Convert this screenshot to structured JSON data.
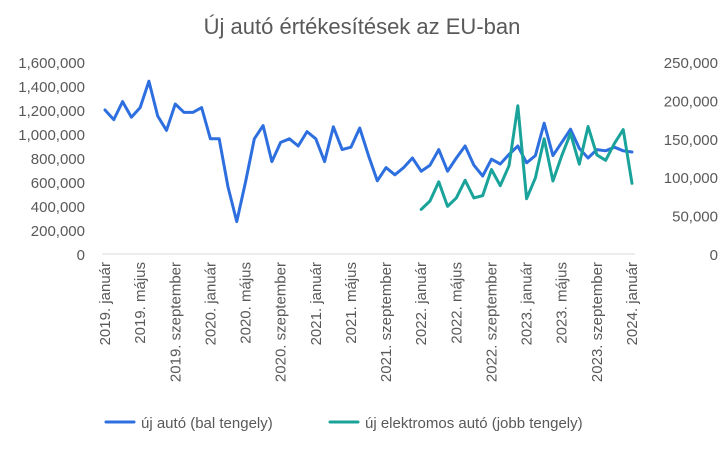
{
  "chart_data": {
    "type": "line",
    "title": "Új autó értékesítések az EU-ban",
    "y_left": {
      "ylim": [
        0,
        1600000
      ],
      "ticks": [
        "0",
        "200,000",
        "400,000",
        "600,000",
        "800,000",
        "1,000,000",
        "1,200,000",
        "1,400,000",
        "1,600,000"
      ],
      "tick_values": [
        0,
        200000,
        400000,
        600000,
        800000,
        1000000,
        1200000,
        1400000,
        1600000
      ]
    },
    "y_right": {
      "ylim": [
        0,
        250000
      ],
      "ticks": [
        "0",
        "50,000",
        "100,000",
        "150,000",
        "200,000",
        "250,000"
      ],
      "tick_values": [
        0,
        50000,
        100000,
        150000,
        200000,
        250000
      ]
    },
    "x_labels": [
      {
        "index": 0,
        "label": "2019. január"
      },
      {
        "index": 4,
        "label": "2019. május"
      },
      {
        "index": 8,
        "label": "2019. szeptember"
      },
      {
        "index": 12,
        "label": "2020. január"
      },
      {
        "index": 16,
        "label": "2020. május"
      },
      {
        "index": 20,
        "label": "2020. szeptember"
      },
      {
        "index": 24,
        "label": "2021. január"
      },
      {
        "index": 28,
        "label": "2021. május"
      },
      {
        "index": 32,
        "label": "2021. szeptember"
      },
      {
        "index": 36,
        "label": "2022. január"
      },
      {
        "index": 40,
        "label": "2022. május"
      },
      {
        "index": 44,
        "label": "2022. szeptember"
      },
      {
        "index": 48,
        "label": "2023. január"
      },
      {
        "index": 52,
        "label": "2023. május"
      },
      {
        "index": 56,
        "label": "2023. szeptember"
      },
      {
        "index": 60,
        "label": "2024. január"
      }
    ],
    "n_points": 61,
    "series": [
      {
        "name": "új autó (bal tengely)",
        "axis": "left",
        "color": "#2e6fdf",
        "start_index": 0,
        "values": [
          1200000,
          1120000,
          1270000,
          1140000,
          1220000,
          1440000,
          1150000,
          1030000,
          1250000,
          1180000,
          1180000,
          1220000,
          960000,
          960000,
          560000,
          270000,
          600000,
          960000,
          1070000,
          770000,
          930000,
          960000,
          900000,
          1020000,
          960000,
          770000,
          1060000,
          870000,
          890000,
          1050000,
          820000,
          610000,
          720000,
          660000,
          720000,
          800000,
          690000,
          740000,
          870000,
          690000,
          800000,
          900000,
          740000,
          650000,
          790000,
          750000,
          830000,
          900000,
          760000,
          820000,
          1090000,
          820000,
          930000,
          1040000,
          880000,
          800000,
          870000,
          860000,
          890000,
          860000,
          850000
        ]
      },
      {
        "name": "új elektromos autó (jobb tengely)",
        "axis": "right",
        "color": "#1aa39a",
        "start_index": 36,
        "values": [
          58000,
          69000,
          94000,
          62000,
          73000,
          96000,
          73000,
          76000,
          110000,
          89000,
          115000,
          193000,
          72000,
          99000,
          150000,
          95000,
          128000,
          157000,
          117000,
          166000,
          129000,
          122000,
          144000,
          162000,
          92000
        ]
      }
    ],
    "legend": {
      "position": "bottom",
      "items": [
        "új autó (bal tengely)",
        "új elektromos autó (jobb tengely)"
      ]
    },
    "grid": false
  }
}
